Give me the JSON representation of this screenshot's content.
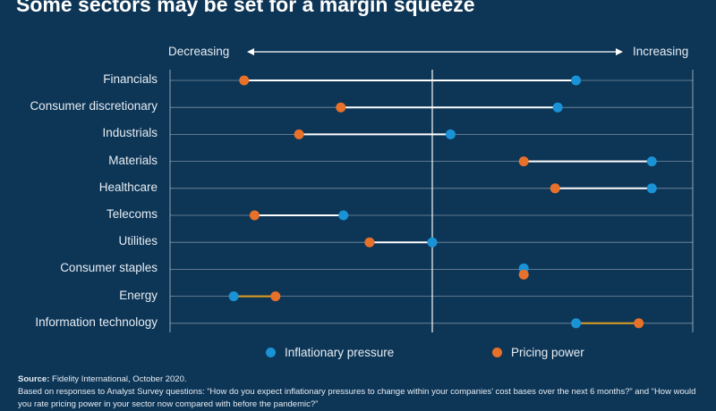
{
  "chart_data": {
    "type": "dumbbell",
    "title": "Some sectors may be set for a margin squeeze",
    "axis_left_label": "Decreasing",
    "axis_right_label": "Increasing",
    "xlim": [
      -1,
      1
    ],
    "categories": [
      "Financials",
      "Consumer discretionary",
      "Industrials",
      "Materials",
      "Healthcare",
      "Telecoms",
      "Utilities",
      "Consumer staples",
      "Energy",
      "Information technology"
    ],
    "series": [
      {
        "name": "Inflationary pressure",
        "color": "#1a93d6",
        "values": [
          0.55,
          0.48,
          0.07,
          0.84,
          0.84,
          -0.34,
          0.0,
          0.35,
          -0.76,
          0.55
        ]
      },
      {
        "name": "Pricing power",
        "color": "#e8712a",
        "values": [
          -0.72,
          -0.35,
          -0.51,
          0.35,
          0.47,
          -0.68,
          -0.24,
          0.35,
          -0.6,
          0.79
        ]
      }
    ],
    "connector_colors": [
      "#ffffff",
      "#ffffff",
      "#ffffff",
      "#ffffff",
      "#ffffff",
      "#ffffff",
      "#ffffff",
      "#ffffff",
      "#e0a020",
      "#e0a020"
    ]
  },
  "source": {
    "label": "Source:",
    "text": "Fidelity International, October 2020.",
    "note": "Based on responses to Analyst Survey questions: “How do you expect inflationary pressures to change within your companies’ cost bases over the next 6 months?” and “How would you rate pricing power in your sector now compared with before the pandemic?”"
  }
}
